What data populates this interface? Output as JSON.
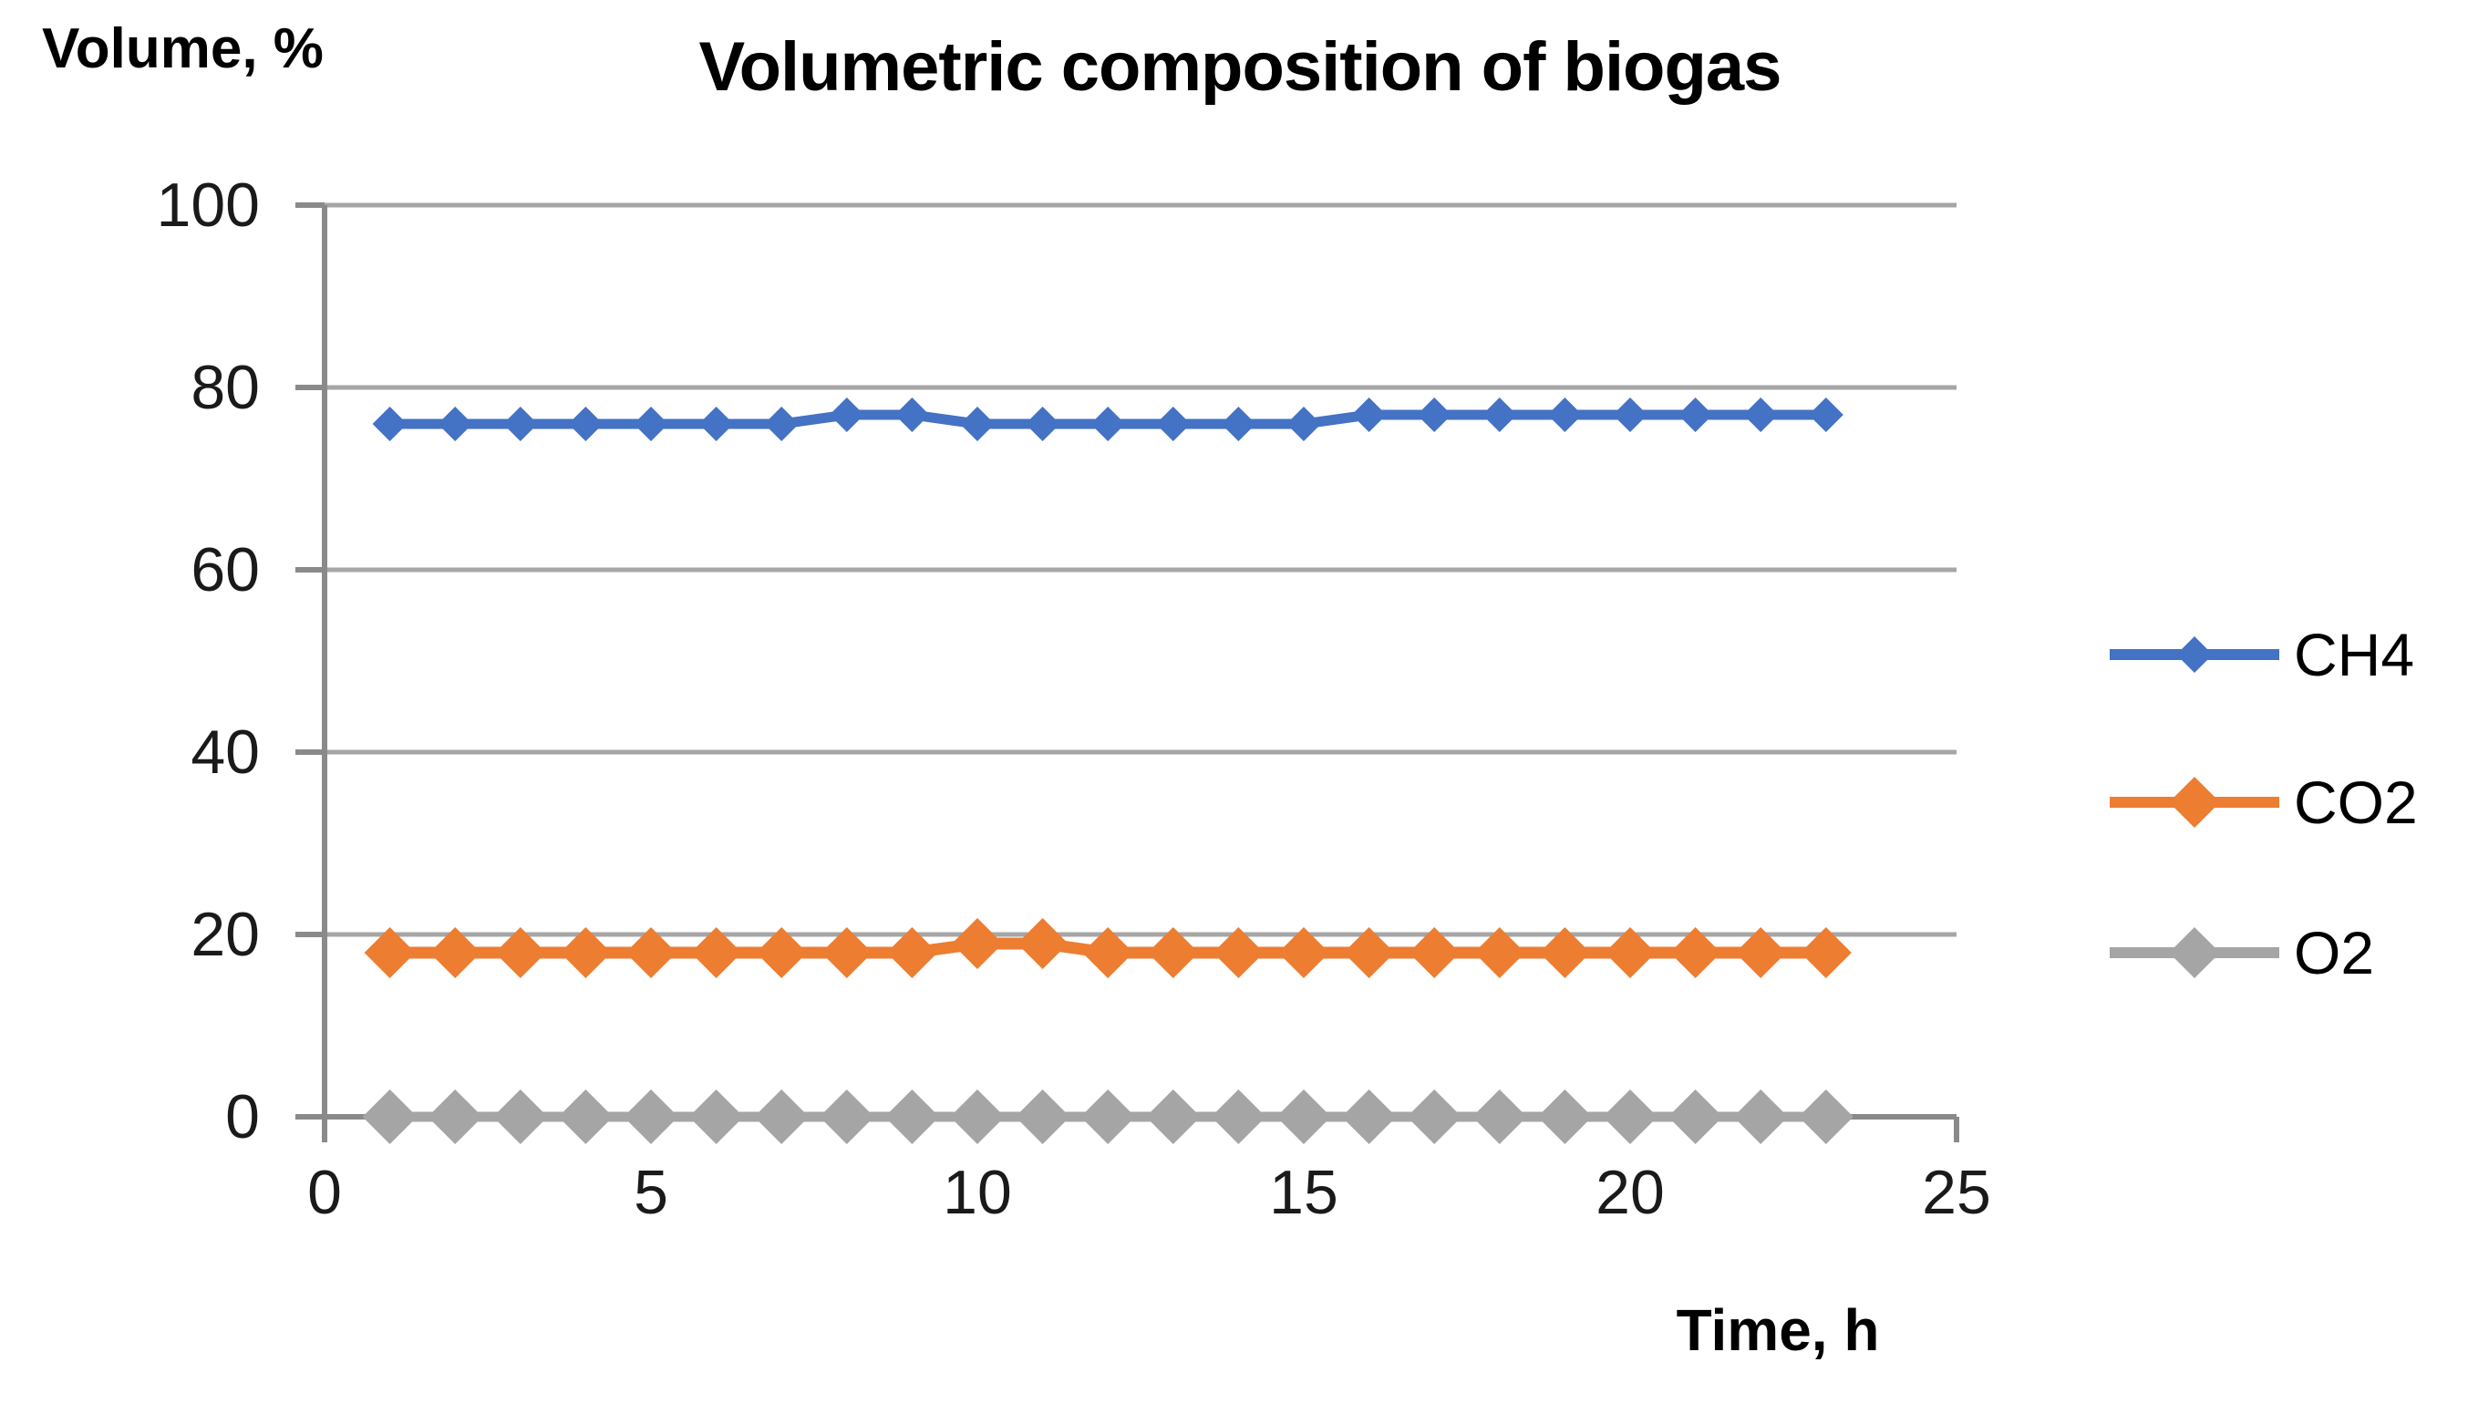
{
  "chart_data": {
    "type": "line",
    "title": "Volumetric composition of biogas",
    "xlabel": "Time, h",
    "ylabel": "Volume, %",
    "xlim": [
      0,
      25
    ],
    "ylim": [
      0,
      100
    ],
    "xticks": [
      0,
      5,
      10,
      15,
      20,
      25
    ],
    "yticks": [
      0,
      20,
      40,
      60,
      80,
      100
    ],
    "grid": "horizontal",
    "legend_position": "right",
    "marker": "diamond",
    "x": [
      1,
      2,
      3,
      4,
      5,
      6,
      7,
      8,
      9,
      10,
      11,
      12,
      13,
      14,
      15,
      16,
      17,
      18,
      19,
      20,
      21,
      22,
      23
    ],
    "series": [
      {
        "name": "CH4",
        "color": "#4472C4",
        "values": [
          76,
          76,
          76,
          76,
          76,
          76,
          76,
          77,
          77,
          76,
          76,
          76,
          76,
          76,
          76,
          77,
          77,
          77,
          77,
          77,
          77,
          77,
          77
        ]
      },
      {
        "name": "CO2",
        "color": "#ED7D31",
        "values": [
          18,
          18,
          18,
          18,
          18,
          18,
          18,
          18,
          18,
          19,
          19,
          18,
          18,
          18,
          18,
          18,
          18,
          18,
          18,
          18,
          18,
          18,
          18
        ]
      },
      {
        "name": "O2",
        "color": "#A5A5A5",
        "values": [
          0,
          0,
          0,
          0,
          0,
          0,
          0,
          0,
          0,
          0,
          0,
          0,
          0,
          0,
          0,
          0,
          0,
          0,
          0,
          0,
          0,
          0,
          0
        ]
      }
    ]
  },
  "colors": {
    "grid": "#A6A6A6",
    "axis": "#8A8A8A",
    "tick_text": "#1A1A1A",
    "title_text": "#000000"
  }
}
